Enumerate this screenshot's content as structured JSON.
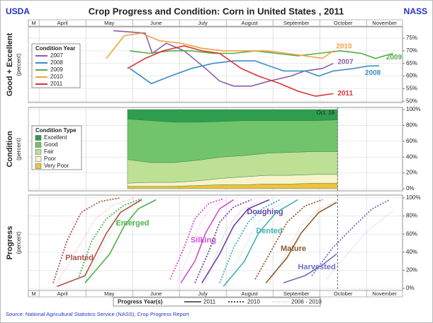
{
  "header": {
    "left": "USDA",
    "title": "Crop Progress and Condition: Corn in United States , 2011",
    "right": "NASS",
    "source": "Source: National Agricultural Statistics Service (NASS), Crop Progress Report"
  },
  "chart_data": [
    {
      "type": "line",
      "y_label": "Good + Excellent",
      "y_sublabel": "(percent)",
      "legend_title": "Condition Year",
      "xlim": [
        3.77,
        11.77
      ],
      "xticks": [
        {
          "value": 3.77,
          "label": "M"
        },
        {
          "value": 4,
          "label": "April"
        },
        {
          "value": 5,
          "label": "May"
        },
        {
          "value": 6,
          "label": "June"
        },
        {
          "value": 7,
          "label": "July"
        },
        {
          "value": 8,
          "label": "August"
        },
        {
          "value": 9,
          "label": "September"
        },
        {
          "value": 10,
          "label": "October"
        },
        {
          "value": 11,
          "label": "November"
        }
      ],
      "ylim": [
        49.5,
        79.5
      ],
      "yticks": [
        {
          "value": 50,
          "label": "50%"
        },
        {
          "value": 55,
          "label": "55%"
        },
        {
          "value": 60,
          "label": "60%"
        },
        {
          "value": 65,
          "label": "65%"
        },
        {
          "value": 70,
          "label": "70%"
        },
        {
          "value": 75,
          "label": "75%"
        }
      ],
      "grid": true,
      "series": [
        {
          "name": "2007",
          "color": "#8e5ca8",
          "x": [
            5.59,
            6.27,
            6.42,
            6.72,
            7.1,
            7.56,
            7.86,
            8.16,
            8.54,
            8.92,
            9.38,
            9.68,
            10.06,
            10.29
          ],
          "values": [
            78,
            77,
            69,
            73,
            70,
            63,
            58,
            56,
            56,
            58,
            60,
            62,
            63,
            65
          ]
        },
        {
          "name": "2008",
          "color": "#3a8fc7",
          "x": [
            5.94,
            6.4,
            6.81,
            7.26,
            7.72,
            8.16,
            8.62,
            8.92,
            9.23,
            9.68,
            9.98,
            10.29,
            10.74,
            11.04,
            11.27
          ],
          "values": [
            63,
            57,
            60,
            63,
            65,
            66,
            66,
            64,
            62,
            62,
            60,
            62,
            63,
            64,
            64
          ]
        },
        {
          "name": "2009",
          "color": "#4fae48",
          "x": [
            5.94,
            6.36,
            6.81,
            7.26,
            7.72,
            8.16,
            8.62,
            9.07,
            9.53,
            9.98,
            10.44,
            10.89,
            11.19,
            11.57
          ],
          "values": [
            70,
            69,
            70,
            70,
            69,
            69,
            70,
            69,
            68,
            69,
            70,
            69,
            67,
            69
          ]
        },
        {
          "name": "2010",
          "color": "#f5a040",
          "x": [
            5.44,
            5.82,
            6.19,
            6.57,
            7.03,
            7.48,
            7.94,
            8.39,
            8.85,
            9.3,
            9.68,
            10.06,
            10.29
          ],
          "values": [
            67,
            76,
            77,
            74,
            73,
            71,
            70,
            70,
            70,
            69,
            68,
            67,
            70
          ]
        },
        {
          "name": "2011",
          "color": "#e03030",
          "x": [
            5.89,
            6.27,
            6.65,
            7.1,
            7.48,
            7.86,
            8.32,
            8.69,
            9.15,
            9.53,
            9.91,
            10.29
          ],
          "values": [
            63,
            67,
            70,
            72,
            70,
            69,
            63,
            60,
            57,
            54,
            52,
            53
          ]
        }
      ]
    },
    {
      "type": "area",
      "stacked": true,
      "y_label": "Condition",
      "y_sublabel": "(percent)",
      "legend_title": "Condition Type",
      "annotation": "Oct. 16",
      "current_x": 10.38,
      "xlim": [
        3.77,
        11.77
      ],
      "xticks": [
        {
          "value": 3.77,
          "label": "M"
        },
        {
          "value": 4,
          "label": "April"
        },
        {
          "value": 5,
          "label": "May"
        },
        {
          "value": 6,
          "label": "June"
        },
        {
          "value": 7,
          "label": "July"
        },
        {
          "value": 8,
          "label": "August"
        },
        {
          "value": 9,
          "label": "September"
        },
        {
          "value": 10,
          "label": "October"
        },
        {
          "value": 11,
          "label": "November"
        }
      ],
      "ylim": [
        0,
        100
      ],
      "yticks": [
        {
          "value": 0,
          "label": "0%"
        },
        {
          "value": 20,
          "label": "20%"
        },
        {
          "value": 40,
          "label": "40%"
        },
        {
          "value": 60,
          "label": "60%"
        },
        {
          "value": 80,
          "label": "80%"
        },
        {
          "value": 100,
          "label": "100%"
        }
      ],
      "grid": true,
      "x": [
        5.89,
        6.39,
        6.89,
        7.39,
        7.89,
        8.39,
        8.89,
        9.39,
        9.89,
        10.38
      ],
      "series": [
        {
          "name": "Excellent",
          "color": "#2e9e4e",
          "values": [
            12,
            14,
            16,
            16,
            15,
            14,
            14,
            14,
            14,
            13
          ]
        },
        {
          "name": "Good",
          "color": "#72c46c",
          "values": [
            51,
            53,
            51,
            48,
            45,
            44,
            41,
            40,
            39,
            40
          ]
        },
        {
          "name": "Fair",
          "color": "#bde095",
          "values": [
            30,
            25,
            25,
            26,
            27,
            27,
            28,
            29,
            29,
            29
          ]
        },
        {
          "name": "Poor",
          "color": "#f7f4cc",
          "values": [
            4,
            5,
            5,
            6,
            8,
            10,
            11,
            11,
            11,
            11
          ]
        },
        {
          "name": "Very Poor",
          "color": "#f0c040",
          "values": [
            3,
            3,
            3,
            4,
            5,
            5,
            6,
            6,
            7,
            7
          ]
        }
      ]
    },
    {
      "type": "line",
      "y_label": "Progress",
      "y_sublabel": "(percent)",
      "legend_title": "Progress Year(s)",
      "xlim": [
        3.77,
        11.77
      ],
      "xticks": [
        {
          "value": 3.77,
          "label": "M"
        },
        {
          "value": 4,
          "label": "April"
        },
        {
          "value": 5,
          "label": "May"
        },
        {
          "value": 6,
          "label": "June"
        },
        {
          "value": 7,
          "label": "July"
        },
        {
          "value": 8,
          "label": "August"
        },
        {
          "value": 9,
          "label": "September"
        },
        {
          "value": 10,
          "label": "October"
        },
        {
          "value": 11,
          "label": "November"
        }
      ],
      "ylim": [
        0,
        100
      ],
      "yticks": [
        {
          "value": 0,
          "label": "0%"
        },
        {
          "value": 20,
          "label": "20%"
        },
        {
          "value": 40,
          "label": "40%"
        },
        {
          "value": 60,
          "label": "60%"
        },
        {
          "value": 80,
          "label": "80%"
        },
        {
          "value": 100,
          "label": "100%"
        }
      ],
      "grid": true,
      "line_styles": [
        {
          "name": "2011",
          "dash": "solid"
        },
        {
          "name": "2010",
          "dash": "dotted"
        },
        {
          "name": "2006 - 2010",
          "dash": "dotted-light"
        }
      ],
      "stages": [
        {
          "name": "Planted",
          "color": "#b0504a",
          "series": [
            {
              "x": [
                4.38,
                4.98,
                5.44,
                5.74,
                6.19
              ],
              "values": [
                2,
                14,
                61,
                84,
                98
              ]
            },
            {
              "x": [
                4.3,
                4.6,
                4.9,
                5.3,
                5.74
              ],
              "values": [
                6,
                53,
                84,
                96,
                100
              ]
            },
            {
              "x": [
                4.38,
                4.83,
                5.21,
                5.59,
                6.04
              ],
              "values": [
                6,
                45,
                77,
                92,
                100
              ]
            }
          ]
        },
        {
          "name": "Emerged",
          "color": "#4fb34a",
          "series": [
            {
              "x": [
                4.98,
                5.51,
                5.82,
                6.12,
                6.5
              ],
              "values": [
                6,
                38,
                69,
                88,
                98
              ]
            },
            {
              "x": [
                4.83,
                5.13,
                5.44,
                5.82,
                6.19
              ],
              "values": [
                10,
                53,
                77,
                92,
                99
              ]
            },
            {
              "x": [
                4.98,
                5.36,
                5.66,
                5.97,
                6.27
              ],
              "values": [
                6,
                45,
                73,
                91,
                98
              ]
            }
          ]
        },
        {
          "name": "Silking",
          "color": "#d04ed0",
          "series": [
            {
              "x": [
                7.03,
                7.33,
                7.56,
                7.86,
                8.16
              ],
              "values": [
                6,
                30,
                61,
                88,
                98
              ]
            },
            {
              "x": [
                6.8,
                7.1,
                7.33,
                7.63,
                7.94
              ],
              "values": [
                10,
                45,
                77,
                94,
                99
              ]
            },
            {
              "x": [
                6.95,
                7.23,
                7.45,
                7.71,
                8.01
              ],
              "values": [
                8,
                41,
                73,
                91,
                98
              ]
            }
          ]
        },
        {
          "name": "Doughing",
          "color": "#6a3fa6",
          "series": [
            {
              "x": [
                7.48,
                7.86,
                8.16,
                8.47,
                8.92
              ],
              "values": [
                6,
                38,
                69,
                88,
                98
              ]
            },
            {
              "x": [
                7.33,
                7.63,
                7.86,
                8.16,
                8.54
              ],
              "values": [
                6,
                41,
                73,
                90,
                98
              ]
            },
            {
              "x": [
                7.56,
                7.79,
                8.01,
                8.32,
                8.69
              ],
              "values": [
                6,
                38,
                66,
                86,
                96
              ]
            }
          ]
        },
        {
          "name": "Dented",
          "color": "#3fb0b0",
          "series": [
            {
              "x": [
                7.94,
                8.39,
                8.69,
                9.07,
                9.53
              ],
              "values": [
                2,
                30,
                61,
                84,
                98
              ]
            },
            {
              "x": [
                7.86,
                8.16,
                8.47,
                8.77,
                9.15
              ],
              "values": [
                6,
                45,
                73,
                88,
                98
              ]
            },
            {
              "x": [
                8.01,
                8.32,
                8.62,
                8.92,
                9.3
              ],
              "values": [
                6,
                38,
                69,
                86,
                97
              ]
            }
          ]
        },
        {
          "name": "Mature",
          "color": "#8b5a2b",
          "series": [
            {
              "x": [
                8.85,
                9.3,
                9.6,
                9.98,
                10.36
              ],
              "values": [
                6,
                34,
                61,
                84,
                95
              ]
            },
            {
              "x": [
                8.62,
                9.0,
                9.3,
                9.68,
                10.06
              ],
              "values": [
                10,
                45,
                73,
                91,
                98
              ]
            },
            {
              "x": [
                8.92,
                9.3,
                9.6,
                9.98,
                10.36
              ],
              "values": [
                6,
                41,
                69,
                88,
                96
              ]
            }
          ]
        },
        {
          "name": "Harvested",
          "color": "#6f6fc0",
          "series": [
            {
              "x": [
                9.22,
                9.68,
                10.06,
                10.36
              ],
              "values": [
                6,
                14,
                26,
                38
              ]
            },
            {
              "x": [
                9.83,
                10.28,
                10.74,
                11.12,
                11.5
              ],
              "values": [
                14,
                45,
                69,
                88,
                98
              ]
            },
            {
              "x": [
                10.13,
                10.59,
                10.97,
                11.35,
                11.57
              ],
              "values": [
                10,
                38,
                61,
                77,
                86
              ]
            }
          ]
        }
      ]
    }
  ]
}
